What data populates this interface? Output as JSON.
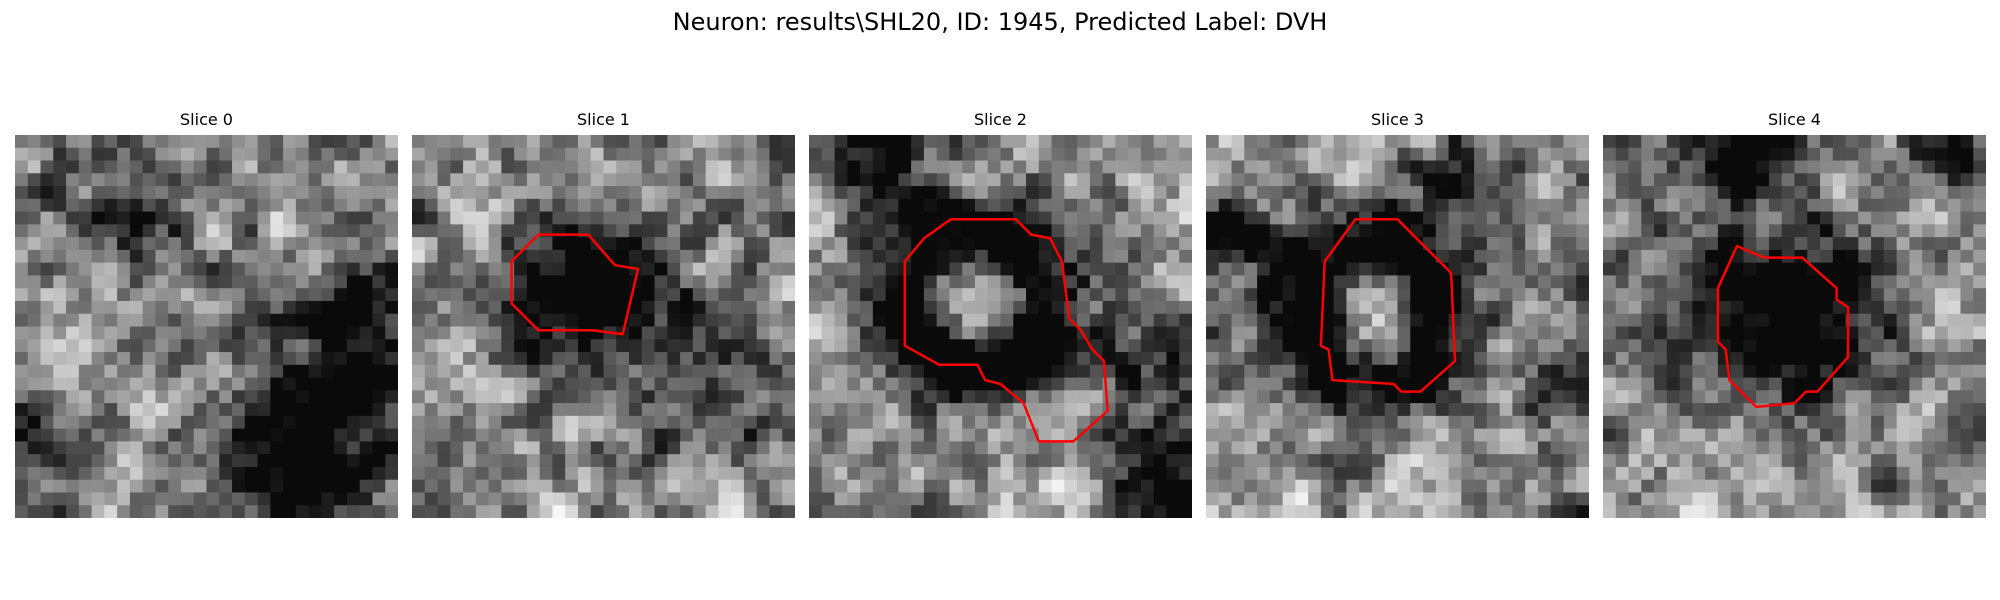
{
  "title": "Neuron: results\\SHL20, ID: 1945, Predicted Label: DVH",
  "contour_color": "#ff0000",
  "grid_size": 30,
  "panels": [
    {
      "label": "Slice 0",
      "seed": 11,
      "spots": [
        [
          0.28,
          0.22,
          0.12,
          0.35
        ],
        [
          0.88,
          0.62,
          0.2,
          0.6
        ],
        [
          0.7,
          0.88,
          0.13,
          0.55
        ],
        [
          0.05,
          0.78,
          0.09,
          0.45
        ]
      ],
      "contour": []
    },
    {
      "label": "Slice 1",
      "seed": 23,
      "spots": [
        [
          0.45,
          0.42,
          0.13,
          0.85
        ],
        [
          0.8,
          0.7,
          0.18,
          0.25
        ]
      ],
      "contour": [
        [
          0.33,
          0.26
        ],
        [
          0.46,
          0.26
        ],
        [
          0.53,
          0.34
        ],
        [
          0.59,
          0.35
        ],
        [
          0.55,
          0.52
        ],
        [
          0.47,
          0.51
        ],
        [
          0.33,
          0.51
        ],
        [
          0.26,
          0.44
        ],
        [
          0.26,
          0.33
        ]
      ]
    },
    {
      "label": "Slice 2",
      "seed": 37,
      "spots": [
        [
          0.22,
          0.05,
          0.09,
          0.5
        ],
        [
          0.95,
          0.9,
          0.12,
          0.55
        ],
        [
          0.85,
          0.6,
          0.15,
          0.25
        ]
      ],
      "ring": [
        0.42,
        0.43,
        0.19,
        0.07,
        0.75
      ],
      "contour": [
        [
          0.37,
          0.22
        ],
        [
          0.54,
          0.22
        ],
        [
          0.58,
          0.26
        ],
        [
          0.63,
          0.27
        ],
        [
          0.66,
          0.33
        ],
        [
          0.68,
          0.48
        ],
        [
          0.71,
          0.51
        ],
        [
          0.74,
          0.56
        ],
        [
          0.77,
          0.59
        ],
        [
          0.78,
          0.72
        ],
        [
          0.69,
          0.8
        ],
        [
          0.6,
          0.8
        ],
        [
          0.56,
          0.7
        ],
        [
          0.5,
          0.65
        ],
        [
          0.46,
          0.64
        ],
        [
          0.44,
          0.6
        ],
        [
          0.34,
          0.6
        ],
        [
          0.25,
          0.55
        ],
        [
          0.25,
          0.33
        ],
        [
          0.3,
          0.27
        ]
      ]
    },
    {
      "label": "Slice 3",
      "seed": 41,
      "spots": [
        [
          0.03,
          0.28,
          0.08,
          0.6
        ],
        [
          0.95,
          0.65,
          0.1,
          0.4
        ],
        [
          0.7,
          0.1,
          0.15,
          0.2
        ]
      ],
      "ring": [
        0.43,
        0.47,
        0.18,
        0.07,
        0.75
      ],
      "contour": [
        [
          0.31,
          0.33
        ],
        [
          0.39,
          0.22
        ],
        [
          0.5,
          0.22
        ],
        [
          0.64,
          0.36
        ],
        [
          0.65,
          0.59
        ],
        [
          0.56,
          0.67
        ],
        [
          0.51,
          0.67
        ],
        [
          0.49,
          0.65
        ],
        [
          0.33,
          0.64
        ],
        [
          0.32,
          0.56
        ],
        [
          0.3,
          0.55
        ]
      ]
    },
    {
      "label": "Slice 4",
      "seed": 53,
      "spots": [
        [
          0.35,
          0.08,
          0.08,
          0.7
        ],
        [
          0.9,
          0.05,
          0.07,
          0.55
        ],
        [
          0.5,
          0.45,
          0.15,
          0.85
        ],
        [
          0.12,
          0.45,
          0.1,
          0.25
        ]
      ],
      "contour": [
        [
          0.35,
          0.29
        ],
        [
          0.42,
          0.32
        ],
        [
          0.52,
          0.32
        ],
        [
          0.61,
          0.4
        ],
        [
          0.61,
          0.43
        ],
        [
          0.64,
          0.45
        ],
        [
          0.64,
          0.58
        ],
        [
          0.56,
          0.67
        ],
        [
          0.53,
          0.67
        ],
        [
          0.5,
          0.7
        ],
        [
          0.4,
          0.71
        ],
        [
          0.33,
          0.64
        ],
        [
          0.32,
          0.56
        ],
        [
          0.3,
          0.54
        ],
        [
          0.3,
          0.4
        ]
      ]
    }
  ]
}
